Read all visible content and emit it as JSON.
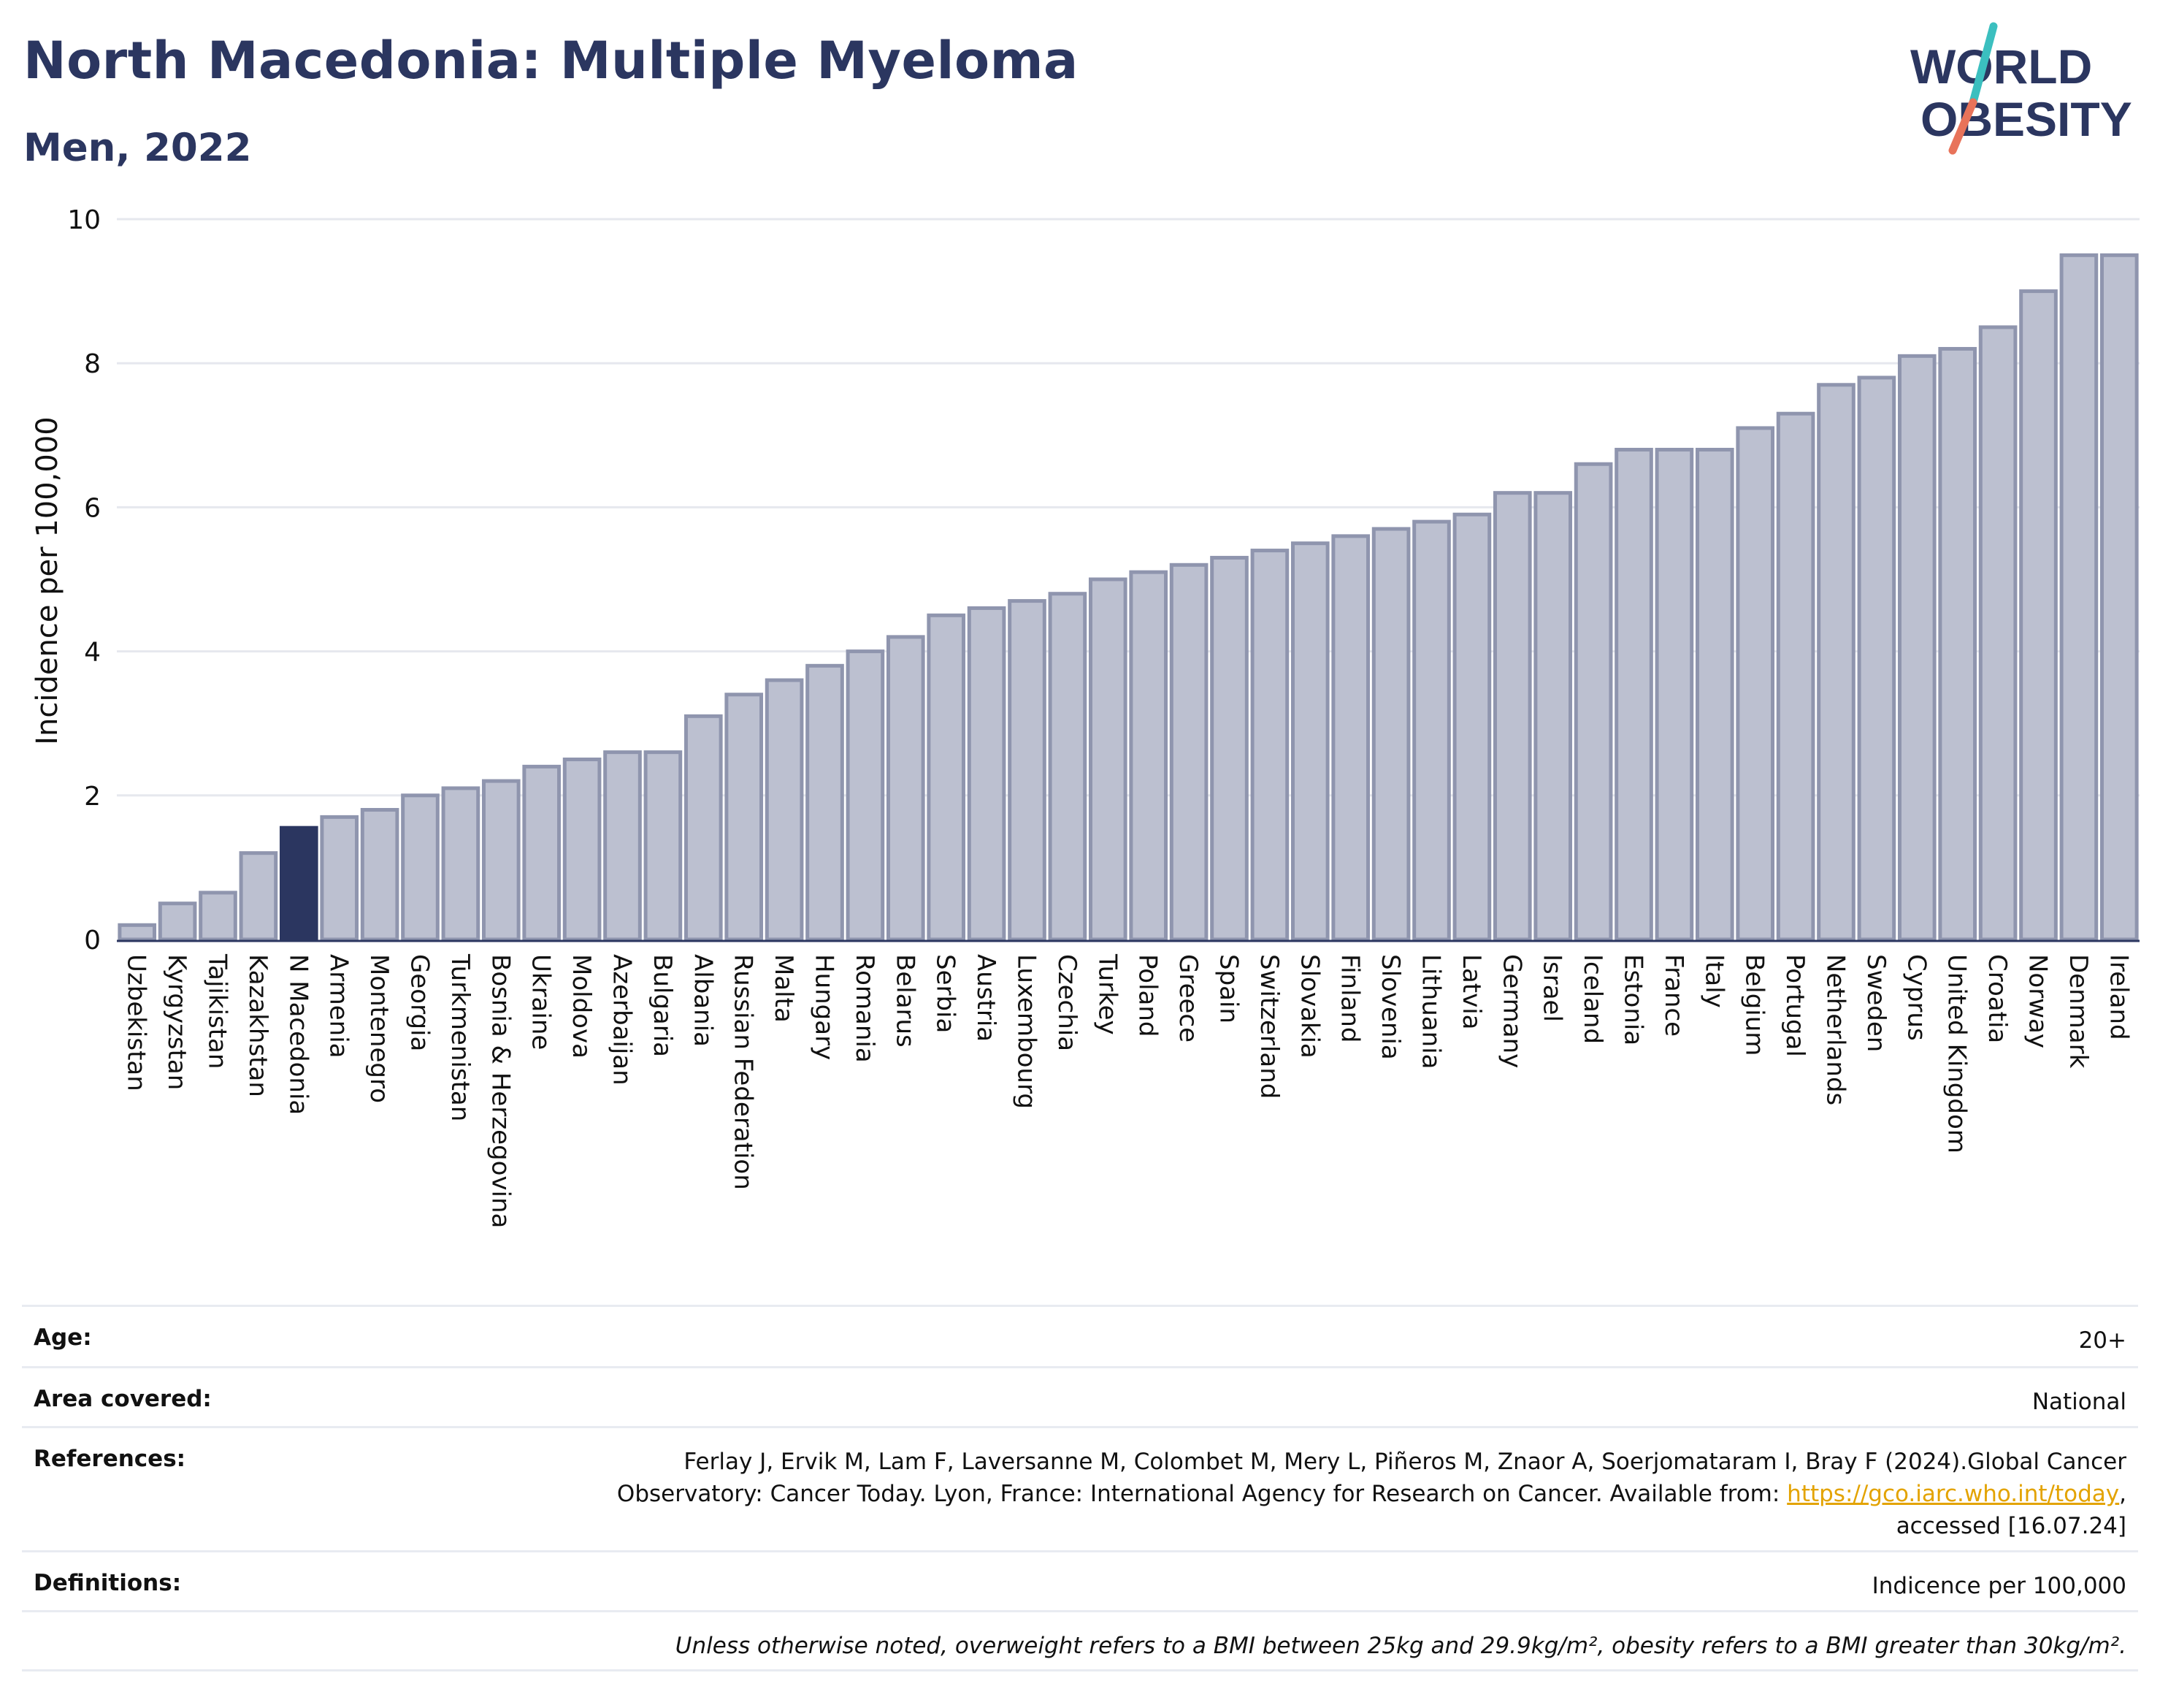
{
  "header": {
    "title": "North Macedonia: Multiple Myeloma",
    "subtitle": "Men, 2022"
  },
  "logo": {
    "line1": "WORLD",
    "line2": "OBESITY"
  },
  "colors": {
    "bar": "#bcc0d0",
    "bar_stroke": "#8f95ae",
    "highlight": "#2b3660",
    "axis": "#2b3660",
    "grid": "#e6e8ee",
    "logo_text": "#2b3660",
    "logo_slash_teal": "#3bbfbf",
    "logo_slash_coral": "#e8735a",
    "link": "#e3a300"
  },
  "chart_data": {
    "type": "bar",
    "title": "North Macedonia: Multiple Myeloma",
    "subtitle": "Men, 2022",
    "ylabel": "Incidence per 100,000",
    "xlabel": "",
    "ylim": [
      0,
      10
    ],
    "yticks": [
      0,
      2,
      4,
      6,
      8,
      10
    ],
    "grid": true,
    "highlight_category": "N Macedonia",
    "categories": [
      "Uzbekistan",
      "Kyrgyzstan",
      "Tajikistan",
      "Kazakhstan",
      "N Macedonia",
      "Armenia",
      "Montenegro",
      "Georgia",
      "Turkmenistan",
      "Bosnia & Herzegovina",
      "Ukraine",
      "Moldova",
      "Azerbaijan",
      "Bulgaria",
      "Albania",
      "Russian Federation",
      "Malta",
      "Hungary",
      "Romania",
      "Belarus",
      "Serbia",
      "Austria",
      "Luxembourg",
      "Czechia",
      "Turkey",
      "Poland",
      "Greece",
      "Spain",
      "Switzerland",
      "Slovakia",
      "Finland",
      "Slovenia",
      "Lithuania",
      "Latvia",
      "Germany",
      "Israel",
      "Iceland",
      "Estonia",
      "France",
      "Italy",
      "Belgium",
      "Portugal",
      "Netherlands",
      "Sweden",
      "Cyprus",
      "United Kingdom",
      "Croatia",
      "Norway",
      "Denmark",
      "Ireland"
    ],
    "values": [
      0.2,
      0.5,
      0.65,
      1.2,
      1.55,
      1.7,
      1.8,
      2.0,
      2.1,
      2.2,
      2.4,
      2.5,
      2.6,
      2.6,
      3.1,
      3.4,
      3.6,
      3.8,
      4.0,
      4.2,
      4.5,
      4.6,
      4.7,
      4.8,
      5.0,
      5.1,
      5.2,
      5.3,
      5.4,
      5.5,
      5.6,
      5.7,
      5.8,
      5.9,
      6.2,
      6.2,
      6.6,
      6.8,
      6.8,
      6.8,
      7.1,
      7.3,
      7.7,
      7.8,
      8.1,
      8.2,
      8.5,
      9.0,
      9.5,
      9.5
    ]
  },
  "info": {
    "age_label": "Age:",
    "age_value": "20+",
    "area_label": "Area covered:",
    "area_value": "National",
    "references_label": "References:",
    "references_line1": "Ferlay J, Ervik M, Lam F, Laversanne M, Colombet M, Mery L, Piñeros M, Znaor A, Soerjomataram I, Bray F (2024).Global Cancer",
    "references_line2_prefix": "Observatory: Cancer Today. Lyon, France: International Agency for Research on Cancer. Available from: ",
    "references_link": "https://gco.iarc.who.int/today",
    "references_line2_suffix": ",",
    "references_line3": "accessed [16.07.24]",
    "definitions_label": "Definitions:",
    "definitions_value": "Indicence per 100,000",
    "note": "Unless otherwise noted, overweight refers to a BMI between 25kg and 29.9kg/m², obesity refers to a BMI greater than 30kg/m²."
  }
}
